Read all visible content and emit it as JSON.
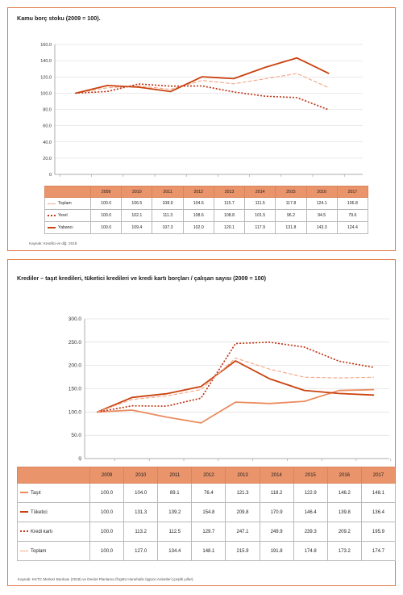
{
  "top": {
    "title": "Kamu borç stoku (2009 = 100).",
    "source": "Kaynak: Kredilci ve diğ. 2018",
    "years": [
      "2009",
      "2010",
      "2011",
      "2012",
      "2013",
      "2014",
      "2015",
      "2016",
      "2017"
    ],
    "rows": [
      {
        "label": "Toplam",
        "values": [
          "100.0",
          "106.5",
          "108.9",
          "104.6",
          "115.7",
          "111.5",
          "117.8",
          "124.1",
          "106.8"
        ]
      },
      {
        "label": "Yerel",
        "values": [
          "100.0",
          "102.1",
          "111.3",
          "108.6",
          "108.8",
          "101.5",
          "96.2",
          "94.5",
          "79.6"
        ]
      },
      {
        "label": "Yabancı",
        "values": [
          "100.0",
          "109.4",
          "107.3",
          "102.0",
          "120.1",
          "117.9",
          "131.8",
          "143.3",
          "124.4"
        ]
      }
    ]
  },
  "bottom": {
    "title": "Krediler – taşıt kredileri, tüketici kredileri ve kredi kartı borçları / çalışan sayısı (2009 = 100)",
    "source": "Kaynak: KKTC Merkez Bankası (2018) ve Devlet Planlama Örgütü Hanehalkı İşgücü Anketleri (çeşitli yıllar).",
    "years": [
      "2009",
      "2010",
      "2011",
      "2012",
      "2013",
      "2014",
      "2015",
      "2016",
      "2017"
    ],
    "rows": [
      {
        "label": "Taşıt",
        "values": [
          "100.0",
          "104.0",
          "89.1",
          "76.4",
          "121.3",
          "118.2",
          "122.9",
          "146.2",
          "148.1"
        ]
      },
      {
        "label": "Tüketici",
        "values": [
          "100.0",
          "131.3",
          "139.2",
          "154.8",
          "209.8",
          "170.9",
          "146.4",
          "139.8",
          "136.4"
        ]
      },
      {
        "label": "Kredi kartı",
        "values": [
          "100.0",
          "113.2",
          "112.5",
          "129.7",
          "247.1",
          "249.9",
          "239.3",
          "209.2",
          "195.9"
        ]
      },
      {
        "label": "Toplam",
        "values": [
          "100.0",
          "127.0",
          "134.4",
          "148.1",
          "215.9",
          "191.8",
          "174.8",
          "173.2",
          "174.7"
        ]
      }
    ]
  },
  "chart_data": [
    {
      "type": "line",
      "title": "Kamu borç stoku (2009 = 100).",
      "categories": [
        "2009",
        "2010",
        "2011",
        "2012",
        "2013",
        "2014",
        "2015",
        "2016",
        "2017"
      ],
      "ylim": [
        0,
        160
      ],
      "yticks": [
        "0",
        "20.0",
        "40.0",
        "60.0",
        "80.0",
        "100.0",
        "120.0",
        "140.0",
        "160.0"
      ],
      "grid": true,
      "series": [
        {
          "name": "Toplam",
          "style": "dashed",
          "color": "#f2a583",
          "values": [
            100.0,
            106.5,
            108.9,
            104.6,
            115.7,
            111.5,
            117.8,
            124.1,
            106.8
          ]
        },
        {
          "name": "Yerel",
          "style": "dotted",
          "color": "#c0391b",
          "values": [
            100.0,
            102.1,
            111.3,
            108.6,
            108.8,
            101.5,
            96.2,
            94.5,
            79.6
          ]
        },
        {
          "name": "Yabancı",
          "style": "solid",
          "color": "#c9420f",
          "values": [
            100.0,
            109.4,
            107.3,
            102.0,
            120.1,
            117.9,
            131.8,
            143.3,
            124.4
          ]
        }
      ]
    },
    {
      "type": "line",
      "title": "Krediler – taşıt kredileri, tüketici kredileri ve kredi kartı borçları / çalışan sayısı (2009 = 100)",
      "categories": [
        "2009",
        "2010",
        "2011",
        "2012",
        "2013",
        "2014",
        "2015",
        "2016",
        "2017"
      ],
      "ylim": [
        0,
        300
      ],
      "yticks": [
        "0",
        "50.0",
        "100.0",
        "150.0",
        "200.0",
        "250.0",
        "300.0"
      ],
      "grid": true,
      "series": [
        {
          "name": "Taşıt",
          "style": "solid",
          "color": "#eb8b5e",
          "values": [
            100.0,
            104.0,
            89.1,
            76.4,
            121.3,
            118.2,
            122.9,
            146.2,
            148.1
          ]
        },
        {
          "name": "Tüketici",
          "style": "solid",
          "color": "#c9420f",
          "values": [
            100.0,
            131.3,
            139.2,
            154.8,
            209.8,
            170.9,
            146.4,
            139.8,
            136.4
          ]
        },
        {
          "name": "Kredi kartı",
          "style": "dotted",
          "color": "#c0391b",
          "values": [
            100.0,
            113.2,
            112.5,
            129.7,
            247.1,
            249.9,
            239.3,
            209.2,
            195.9
          ]
        },
        {
          "name": "Toplam",
          "style": "dashed",
          "color": "#f2a583",
          "values": [
            100.0,
            127.0,
            134.4,
            148.1,
            215.9,
            191.8,
            174.8,
            173.2,
            174.7
          ]
        }
      ]
    }
  ]
}
